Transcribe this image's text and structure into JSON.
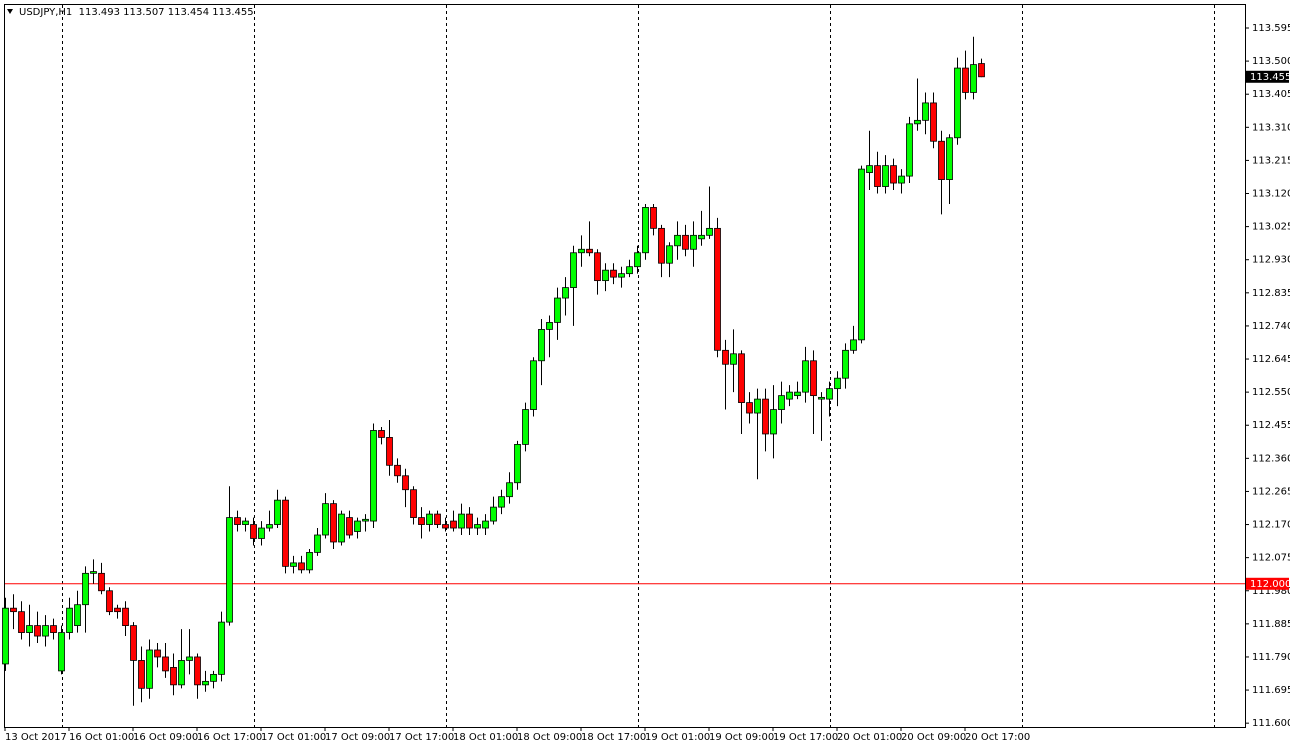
{
  "chart_data": {
    "type": "candlestick",
    "title": "USDJPY,H1  113.493 113.507 113.454 113.455",
    "categories": [
      "13 Oct 2017",
      null,
      null,
      null,
      null,
      null,
      null,
      null,
      "16 Oct 01:00",
      null,
      null,
      null,
      null,
      null,
      null,
      null,
      "16 Oct 09:00",
      null,
      null,
      null,
      null,
      null,
      null,
      null,
      "16 Oct 17:00",
      null,
      null,
      null,
      null,
      null,
      null,
      null,
      "17 Oct 01:00",
      null,
      null,
      null,
      null,
      null,
      null,
      null,
      "17 Oct 09:00",
      null,
      null,
      null,
      null,
      null,
      null,
      null,
      "17 Oct 17:00",
      null,
      null,
      null,
      null,
      null,
      null,
      null,
      "18 Oct 01:00",
      null,
      null,
      null,
      null,
      null,
      null,
      null,
      "18 Oct 09:00",
      null,
      null,
      null,
      null,
      null,
      null,
      null,
      "18 Oct 17:00",
      null,
      null,
      null,
      null,
      null,
      null,
      null,
      "19 Oct 01:00",
      null,
      null,
      null,
      null,
      null,
      null,
      null,
      "19 Oct 09:00",
      null,
      null,
      null,
      null,
      null,
      null,
      null,
      "19 Oct 17:00",
      null,
      null,
      null,
      null,
      null,
      null,
      null,
      "20 Oct 01:00",
      null,
      null,
      null,
      null,
      null,
      null,
      null,
      "20 Oct 09:00",
      null,
      null,
      null,
      null,
      null,
      null,
      null,
      "20 Oct 17:00",
      null,
      null
    ],
    "open": [
      111.77,
      111.93,
      111.92,
      111.86,
      111.88,
      111.85,
      111.88,
      111.75,
      111.86,
      111.88,
      111.94,
      112.03,
      112.03,
      111.98,
      111.93,
      111.93,
      111.88,
      111.78,
      111.7,
      111.81,
      111.79,
      111.76,
      111.71,
      111.78,
      111.79,
      111.71,
      111.72,
      111.74,
      111.89,
      112.19,
      112.17,
      112.17,
      112.13,
      112.16,
      112.17,
      112.24,
      112.05,
      112.06,
      112.04,
      112.09,
      112.14,
      112.23,
      112.12,
      112.19,
      112.15,
      112.18,
      112.18,
      112.44,
      112.42,
      112.34,
      112.31,
      112.27,
      112.19,
      112.17,
      112.2,
      112.17,
      112.18,
      112.16,
      112.2,
      112.16,
      112.16,
      112.18,
      112.22,
      112.25,
      112.29,
      112.4,
      112.5,
      112.64,
      112.73,
      112.75,
      112.82,
      112.85,
      112.95,
      112.96,
      112.95,
      112.87,
      112.9,
      112.88,
      112.89,
      112.91,
      112.95,
      113.08,
      113.02,
      112.92,
      112.97,
      113.0,
      112.96,
      112.99,
      113.0,
      113.02,
      112.67,
      112.63,
      112.66,
      112.52,
      112.49,
      112.53,
      112.43,
      112.5,
      112.53,
      112.54,
      112.55,
      112.64,
      112.53,
      112.53,
      112.56,
      112.59,
      112.67,
      112.7,
      113.18,
      113.2,
      113.14,
      113.2,
      113.15,
      113.17,
      113.32,
      113.33,
      113.38,
      113.27,
      113.16,
      113.28,
      113.48,
      113.41,
      113.493
    ],
    "high": [
      111.96,
      111.97,
      111.95,
      111.94,
      111.92,
      111.91,
      111.9,
      111.88,
      111.96,
      111.98,
      112.05,
      112.07,
      112.06,
      111.99,
      111.94,
      111.95,
      111.89,
      111.82,
      111.84,
      111.83,
      111.83,
      111.8,
      111.87,
      111.87,
      111.8,
      111.75,
      111.75,
      111.92,
      112.28,
      112.21,
      112.19,
      112.19,
      112.18,
      112.21,
      112.27,
      112.25,
      112.08,
      112.08,
      112.1,
      112.16,
      112.26,
      112.24,
      112.21,
      112.21,
      112.19,
      112.2,
      112.46,
      112.45,
      112.47,
      112.36,
      112.33,
      112.28,
      112.22,
      112.21,
      112.21,
      112.19,
      112.21,
      112.23,
      112.22,
      112.19,
      112.2,
      112.25,
      112.27,
      112.32,
      112.41,
      112.52,
      112.65,
      112.76,
      112.77,
      112.85,
      112.88,
      112.97,
      113.0,
      113.04,
      112.96,
      112.92,
      112.92,
      112.91,
      112.93,
      112.97,
      113.09,
      113.09,
      113.03,
      112.98,
      113.04,
      113.03,
      113.04,
      113.07,
      113.14,
      113.05,
      112.7,
      112.73,
      112.67,
      112.55,
      112.56,
      112.56,
      112.57,
      112.58,
      112.57,
      112.58,
      112.68,
      112.67,
      112.55,
      112.58,
      112.61,
      112.69,
      112.74,
      113.2,
      113.3,
      113.24,
      113.23,
      113.22,
      113.19,
      113.34,
      113.45,
      113.41,
      113.41,
      113.3,
      113.29,
      113.51,
      113.53,
      113.57,
      113.507
    ],
    "low": [
      111.75,
      111.87,
      111.84,
      111.82,
      111.83,
      111.82,
      111.84,
      111.74,
      111.84,
      111.86,
      111.86,
      112.0,
      111.97,
      111.91,
      111.9,
      111.85,
      111.65,
      111.66,
      111.67,
      111.76,
      111.73,
      111.68,
      111.7,
      111.74,
      111.67,
      111.69,
      111.7,
      111.72,
      111.88,
      112.15,
      112.15,
      112.11,
      112.11,
      112.15,
      112.16,
      112.03,
      112.03,
      112.03,
      112.03,
      112.08,
      112.13,
      112.1,
      112.11,
      112.13,
      112.13,
      112.15,
      112.16,
      112.4,
      112.31,
      112.29,
      112.22,
      112.17,
      112.13,
      112.15,
      112.16,
      112.15,
      112.15,
      112.14,
      112.14,
      112.14,
      112.14,
      112.17,
      112.2,
      112.23,
      112.27,
      112.38,
      112.48,
      112.57,
      112.65,
      112.7,
      112.77,
      112.74,
      112.91,
      112.94,
      112.83,
      112.84,
      112.86,
      112.85,
      112.88,
      112.89,
      112.93,
      113.0,
      112.88,
      112.88,
      112.93,
      112.94,
      112.91,
      112.97,
      112.99,
      112.65,
      112.5,
      112.55,
      112.43,
      112.46,
      112.3,
      112.38,
      112.36,
      112.46,
      112.51,
      112.53,
      112.52,
      112.43,
      112.41,
      112.48,
      112.51,
      112.56,
      112.66,
      112.69,
      113.13,
      113.12,
      113.12,
      113.13,
      113.12,
      113.15,
      113.3,
      113.29,
      113.25,
      113.06,
      113.09,
      113.26,
      113.39,
      113.39,
      113.454
    ],
    "close": [
      111.93,
      111.92,
      111.86,
      111.88,
      111.85,
      111.88,
      111.86,
      111.86,
      111.93,
      111.94,
      112.03,
      112.035,
      111.98,
      111.92,
      111.92,
      111.88,
      111.78,
      111.7,
      111.81,
      111.79,
      111.75,
      111.71,
      111.78,
      111.79,
      111.71,
      111.72,
      111.74,
      111.89,
      112.19,
      112.17,
      112.18,
      112.13,
      112.16,
      112.17,
      112.24,
      112.05,
      112.06,
      112.04,
      112.09,
      112.14,
      112.23,
      112.12,
      112.2,
      112.14,
      112.18,
      112.185,
      112.44,
      112.42,
      112.34,
      112.31,
      112.27,
      112.19,
      112.17,
      112.2,
      112.17,
      112.16,
      112.16,
      112.2,
      112.16,
      112.17,
      112.18,
      112.22,
      112.25,
      112.29,
      112.4,
      112.5,
      112.64,
      112.73,
      112.75,
      112.82,
      112.85,
      112.95,
      112.96,
      112.95,
      112.87,
      112.9,
      112.88,
      112.89,
      112.91,
      112.95,
      113.08,
      113.02,
      112.92,
      112.97,
      113.0,
      112.96,
      113.0,
      113.0,
      113.02,
      112.67,
      112.63,
      112.66,
      112.52,
      112.49,
      112.53,
      112.43,
      112.5,
      112.54,
      112.55,
      112.55,
      112.64,
      112.54,
      112.535,
      112.56,
      112.59,
      112.67,
      112.7,
      113.19,
      113.2,
      113.14,
      113.2,
      113.15,
      113.17,
      113.32,
      113.33,
      113.38,
      113.27,
      113.16,
      113.28,
      113.48,
      113.41,
      113.49,
      113.455
    ],
    "up_color": "#00ff00",
    "down_color": "#ff0000",
    "ylim": [
      111.589,
      113.661
    ],
    "yticks": [
      {
        "value": 111.6,
        "label": "111.600"
      },
      111.695,
      {
        "value": 111.79,
        "label": "111.790"
      },
      111.885,
      {
        "value": 111.98,
        "label": "111.980"
      },
      112.075,
      {
        "value": 112.17,
        "label": "112.170"
      },
      112.265,
      {
        "value": 112.36,
        "label": "112.360"
      },
      112.455,
      {
        "value": 112.55,
        "label": "112.550"
      },
      112.645,
      {
        "value": 112.74,
        "label": "112.740"
      },
      112.835,
      {
        "value": 112.93,
        "label": "112.930"
      },
      113.025,
      {
        "value": 113.12,
        "label": "113.120"
      },
      113.215,
      {
        "value": 113.31,
        "label": "113.310"
      },
      113.405,
      {
        "value": 113.5,
        "label": "113.500"
      },
      113.595
    ],
    "hline": {
      "value": 112.0,
      "label": "112.000",
      "color": "#ff0000"
    },
    "price_label": {
      "value": 113.455,
      "label": "113.455"
    }
  }
}
